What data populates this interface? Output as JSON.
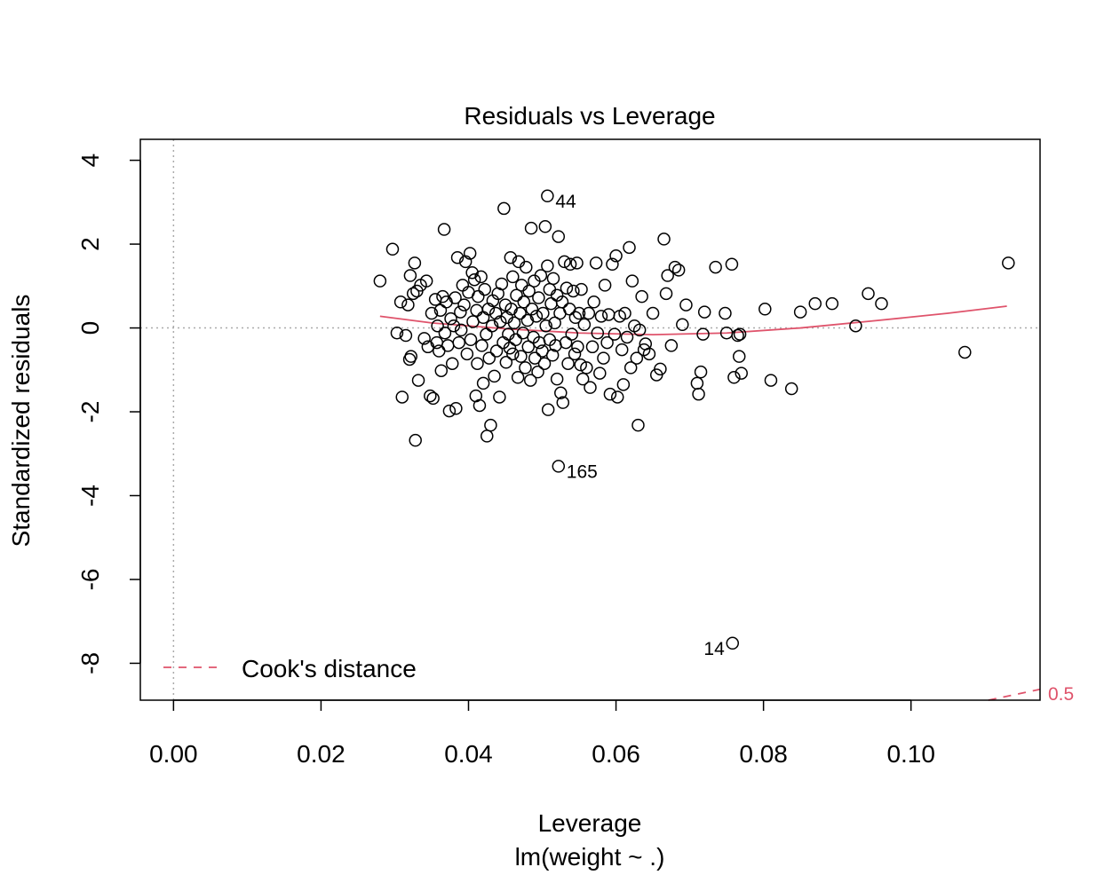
{
  "chart_data": {
    "type": "scatter",
    "title": "Residuals vs Leverage",
    "xlabel": "Leverage",
    "sublabel": "lm(weight ~ .)",
    "ylabel": "Standardized residuals",
    "xlim": [
      -0.0045,
      0.1175
    ],
    "ylim": [
      -8.88,
      4.5
    ],
    "x_ticks": [
      0.0,
      0.02,
      0.04,
      0.06,
      0.08,
      0.1
    ],
    "x_tick_labels": [
      "0.00",
      "0.02",
      "0.04",
      "0.06",
      "0.08",
      "0.10"
    ],
    "y_ticks": [
      4,
      2,
      0,
      -2,
      -4,
      -6,
      -8
    ],
    "y_tick_labels": [
      "4",
      "2",
      "0",
      "-2",
      "-4",
      "-6",
      "-8"
    ],
    "grid": false,
    "reference_lines": {
      "h": 0,
      "v": 0,
      "style": "dotted",
      "color": "#aaaaaa"
    },
    "point_color": "#000000",
    "smooth_color": "#DF536B",
    "legend": {
      "position": "bottom-left",
      "entries": [
        {
          "label": "Cook's distance",
          "style": "dashed",
          "color": "#DF536B"
        }
      ]
    },
    "cooks_contour": {
      "label": "0.5",
      "color": "#DF536B",
      "x": [
        0.1105,
        0.1175
      ],
      "y": [
        -8.88,
        -8.62
      ]
    },
    "smooth_line": {
      "x": [
        0.028,
        0.035,
        0.045,
        0.055,
        0.065,
        0.075,
        0.085,
        0.095,
        0.105,
        0.113
      ],
      "y": [
        0.28,
        0.12,
        -0.02,
        -0.12,
        -0.16,
        -0.12,
        0.0,
        0.17,
        0.35,
        0.52
      ]
    },
    "labeled_points": [
      {
        "x": 0.0507,
        "y": 3.15,
        "label": "44",
        "side": "right"
      },
      {
        "x": 0.0522,
        "y": -3.3,
        "label": "165",
        "side": "right"
      },
      {
        "x": 0.0758,
        "y": -7.52,
        "label": "14",
        "side": "left"
      }
    ],
    "points": [
      [
        0.028,
        1.12
      ],
      [
        0.0297,
        1.88
      ],
      [
        0.0303,
        -0.12
      ],
      [
        0.0308,
        0.62
      ],
      [
        0.031,
        -1.65
      ],
      [
        0.0315,
        -0.18
      ],
      [
        0.0318,
        0.55
      ],
      [
        0.032,
        -0.75
      ],
      [
        0.0321,
        1.25
      ],
      [
        0.0322,
        -0.68
      ],
      [
        0.0325,
        0.82
      ],
      [
        0.0327,
        1.55
      ],
      [
        0.0328,
        -2.68
      ],
      [
        0.033,
        0.88
      ],
      [
        0.0332,
        -1.25
      ],
      [
        0.0335,
        1.02
      ],
      [
        0.034,
        -0.25
      ],
      [
        0.0343,
        1.12
      ],
      [
        0.0345,
        -0.45
      ],
      [
        0.0348,
        -1.62
      ],
      [
        0.035,
        0.35
      ],
      [
        0.0352,
        -1.68
      ],
      [
        0.0355,
        0.68
      ],
      [
        0.0357,
        -0.35
      ],
      [
        0.0358,
        0.05
      ],
      [
        0.036,
        -0.55
      ],
      [
        0.0362,
        0.42
      ],
      [
        0.0363,
        -1.02
      ],
      [
        0.0365,
        0.75
      ],
      [
        0.0367,
        2.35
      ],
      [
        0.0368,
        -0.12
      ],
      [
        0.037,
        0.62
      ],
      [
        0.0372,
        -0.42
      ],
      [
        0.0374,
        -1.98
      ],
      [
        0.0376,
        0.22
      ],
      [
        0.0378,
        -0.85
      ],
      [
        0.038,
        0.05
      ],
      [
        0.0382,
        0.72
      ],
      [
        0.0383,
        -1.92
      ],
      [
        0.0385,
        1.68
      ],
      [
        0.0387,
        -0.35
      ],
      [
        0.0389,
        0.38
      ],
      [
        0.039,
        -0.05
      ],
      [
        0.0392,
        1.02
      ],
      [
        0.0394,
        0.55
      ],
      [
        0.0396,
        1.58
      ],
      [
        0.0398,
        -0.62
      ],
      [
        0.04,
        0.85
      ],
      [
        0.0402,
        1.78
      ],
      [
        0.0403,
        -0.28
      ],
      [
        0.0405,
        1.32
      ],
      [
        0.0406,
        0.15
      ],
      [
        0.0408,
        1.15
      ],
      [
        0.041,
        -1.62
      ],
      [
        0.0411,
        0.42
      ],
      [
        0.0412,
        -0.85
      ],
      [
        0.0413,
        0.75
      ],
      [
        0.0415,
        -1.85
      ],
      [
        0.0417,
        1.22
      ],
      [
        0.0418,
        -0.42
      ],
      [
        0.042,
        -1.32
      ],
      [
        0.042,
        0.25
      ],
      [
        0.0422,
        0.92
      ],
      [
        0.0424,
        -0.15
      ],
      [
        0.0425,
        -2.58
      ],
      [
        0.0427,
        0.45
      ],
      [
        0.0428,
        -0.72
      ],
      [
        0.043,
        -2.32
      ],
      [
        0.0432,
        0.05
      ],
      [
        0.0433,
        0.65
      ],
      [
        0.0435,
        -1.15
      ],
      [
        0.0437,
        0.35
      ],
      [
        0.0438,
        -0.55
      ],
      [
        0.044,
        0.82
      ],
      [
        0.0442,
        -1.65
      ],
      [
        0.0443,
        0.15
      ],
      [
        0.0445,
        1.05
      ],
      [
        0.0447,
        -0.35
      ],
      [
        0.0448,
        2.85
      ],
      [
        0.045,
        0.55
      ],
      [
        0.0451,
        -0.82
      ],
      [
        0.0452,
        0.25
      ],
      [
        0.0454,
        -0.15
      ],
      [
        0.0456,
        -0.48
      ],
      [
        0.0457,
        1.68
      ],
      [
        0.0458,
        0.45
      ],
      [
        0.046,
        -0.62
      ],
      [
        0.046,
        1.22
      ],
      [
        0.0462,
        0.12
      ],
      [
        0.0464,
        -0.28
      ],
      [
        0.0465,
        0.78
      ],
      [
        0.0467,
        -1.18
      ],
      [
        0.0468,
        1.58
      ],
      [
        0.047,
        0.35
      ],
      [
        0.0471,
        -0.68
      ],
      [
        0.0472,
        1.02
      ],
      [
        0.0474,
        -0.12
      ],
      [
        0.0475,
        0.62
      ],
      [
        0.0477,
        -0.95
      ],
      [
        0.0478,
        1.45
      ],
      [
        0.048,
        0.18
      ],
      [
        0.0481,
        -0.45
      ],
      [
        0.0482,
        0.88
      ],
      [
        0.0484,
        -1.25
      ],
      [
        0.0485,
        2.38
      ],
      [
        0.0486,
        0.45
      ],
      [
        0.0488,
        -0.22
      ],
      [
        0.0489,
        1.12
      ],
      [
        0.049,
        -0.72
      ],
      [
        0.0492,
        0.28
      ],
      [
        0.0494,
        -1.05
      ],
      [
        0.0495,
        0.72
      ],
      [
        0.0496,
        -0.35
      ],
      [
        0.0498,
        1.25
      ],
      [
        0.05,
        -0.55
      ],
      [
        0.0501,
        0.35
      ],
      [
        0.0503,
        -0.85
      ],
      [
        0.0504,
        2.42
      ],
      [
        0.0505,
        0.05
      ],
      [
        0.0507,
        1.48
      ],
      [
        0.0508,
        -1.95
      ],
      [
        0.051,
        0.92
      ],
      [
        0.051,
        -0.28
      ],
      [
        0.0512,
        0.58
      ],
      [
        0.0514,
        -0.65
      ],
      [
        0.0515,
        1.18
      ],
      [
        0.0517,
        0.12
      ],
      [
        0.0518,
        -0.42
      ],
      [
        0.052,
        0.78
      ],
      [
        0.052,
        -1.22
      ],
      [
        0.0522,
        2.18
      ],
      [
        0.0524,
        0.35
      ],
      [
        0.0525,
        -1.55
      ],
      [
        0.0527,
        0.62
      ],
      [
        0.0528,
        -1.78
      ],
      [
        0.053,
        1.58
      ],
      [
        0.0532,
        -0.35
      ],
      [
        0.0533,
        0.95
      ],
      [
        0.0535,
        -0.85
      ],
      [
        0.0537,
        0.45
      ],
      [
        0.0538,
        1.52
      ],
      [
        0.054,
        -0.15
      ],
      [
        0.0542,
        0.88
      ],
      [
        0.0544,
        -0.62
      ],
      [
        0.0545,
        0.25
      ],
      [
        0.0547,
        1.55
      ],
      [
        0.0548,
        -0.45
      ],
      [
        0.055,
        0.35
      ],
      [
        0.0552,
        -0.88
      ],
      [
        0.0553,
        0.92
      ],
      [
        0.0555,
        -1.22
      ],
      [
        0.0557,
        0.08
      ],
      [
        0.056,
        -0.95
      ],
      [
        0.0563,
        0.35
      ],
      [
        0.0565,
        -1.42
      ],
      [
        0.0568,
        -0.45
      ],
      [
        0.057,
        0.62
      ],
      [
        0.0573,
        1.55
      ],
      [
        0.0575,
        -0.12
      ],
      [
        0.0578,
        -1.08
      ],
      [
        0.058,
        0.28
      ],
      [
        0.0583,
        -0.72
      ],
      [
        0.0585,
        1.02
      ],
      [
        0.0588,
        -0.35
      ],
      [
        0.059,
        0.32
      ],
      [
        0.0592,
        -1.58
      ],
      [
        0.0595,
        1.52
      ],
      [
        0.0598,
        -0.15
      ],
      [
        0.06,
        1.72
      ],
      [
        0.0602,
        -1.65
      ],
      [
        0.0605,
        0.28
      ],
      [
        0.0608,
        -0.52
      ],
      [
        0.061,
        -1.35
      ],
      [
        0.0612,
        0.35
      ],
      [
        0.0615,
        -0.22
      ],
      [
        0.0618,
        1.92
      ],
      [
        0.062,
        -0.95
      ],
      [
        0.0622,
        1.12
      ],
      [
        0.0625,
        0.05
      ],
      [
        0.0628,
        -0.72
      ],
      [
        0.063,
        -2.32
      ],
      [
        0.0632,
        -0.05
      ],
      [
        0.0635,
        0.75
      ],
      [
        0.0638,
        -0.52
      ],
      [
        0.064,
        -0.38
      ],
      [
        0.0645,
        -0.62
      ],
      [
        0.065,
        0.35
      ],
      [
        0.0655,
        -1.12
      ],
      [
        0.066,
        -0.98
      ],
      [
        0.0665,
        2.12
      ],
      [
        0.0668,
        0.82
      ],
      [
        0.067,
        1.25
      ],
      [
        0.0675,
        -0.42
      ],
      [
        0.068,
        1.45
      ],
      [
        0.0685,
        1.38
      ],
      [
        0.069,
        0.08
      ],
      [
        0.0695,
        0.55
      ],
      [
        0.071,
        -1.32
      ],
      [
        0.0712,
        -1.58
      ],
      [
        0.0715,
        -1.05
      ],
      [
        0.0718,
        -0.15
      ],
      [
        0.072,
        0.38
      ],
      [
        0.0735,
        1.45
      ],
      [
        0.0748,
        0.35
      ],
      [
        0.075,
        -0.12
      ],
      [
        0.0757,
        1.52
      ],
      [
        0.076,
        -1.18
      ],
      [
        0.0765,
        -0.18
      ],
      [
        0.0767,
        -0.68
      ],
      [
        0.0768,
        -0.15
      ],
      [
        0.077,
        -1.08
      ],
      [
        0.0802,
        0.45
      ],
      [
        0.081,
        -1.25
      ],
      [
        0.0838,
        -1.45
      ],
      [
        0.085,
        0.38
      ],
      [
        0.087,
        0.58
      ],
      [
        0.0893,
        0.58
      ],
      [
        0.0925,
        0.05
      ],
      [
        0.0942,
        0.82
      ],
      [
        0.096,
        0.58
      ],
      [
        0.1073,
        -0.58
      ],
      [
        0.1132,
        1.55
      ],
      [
        0.0507,
        3.15
      ],
      [
        0.0522,
        -3.3
      ],
      [
        0.0758,
        -7.52
      ]
    ]
  }
}
